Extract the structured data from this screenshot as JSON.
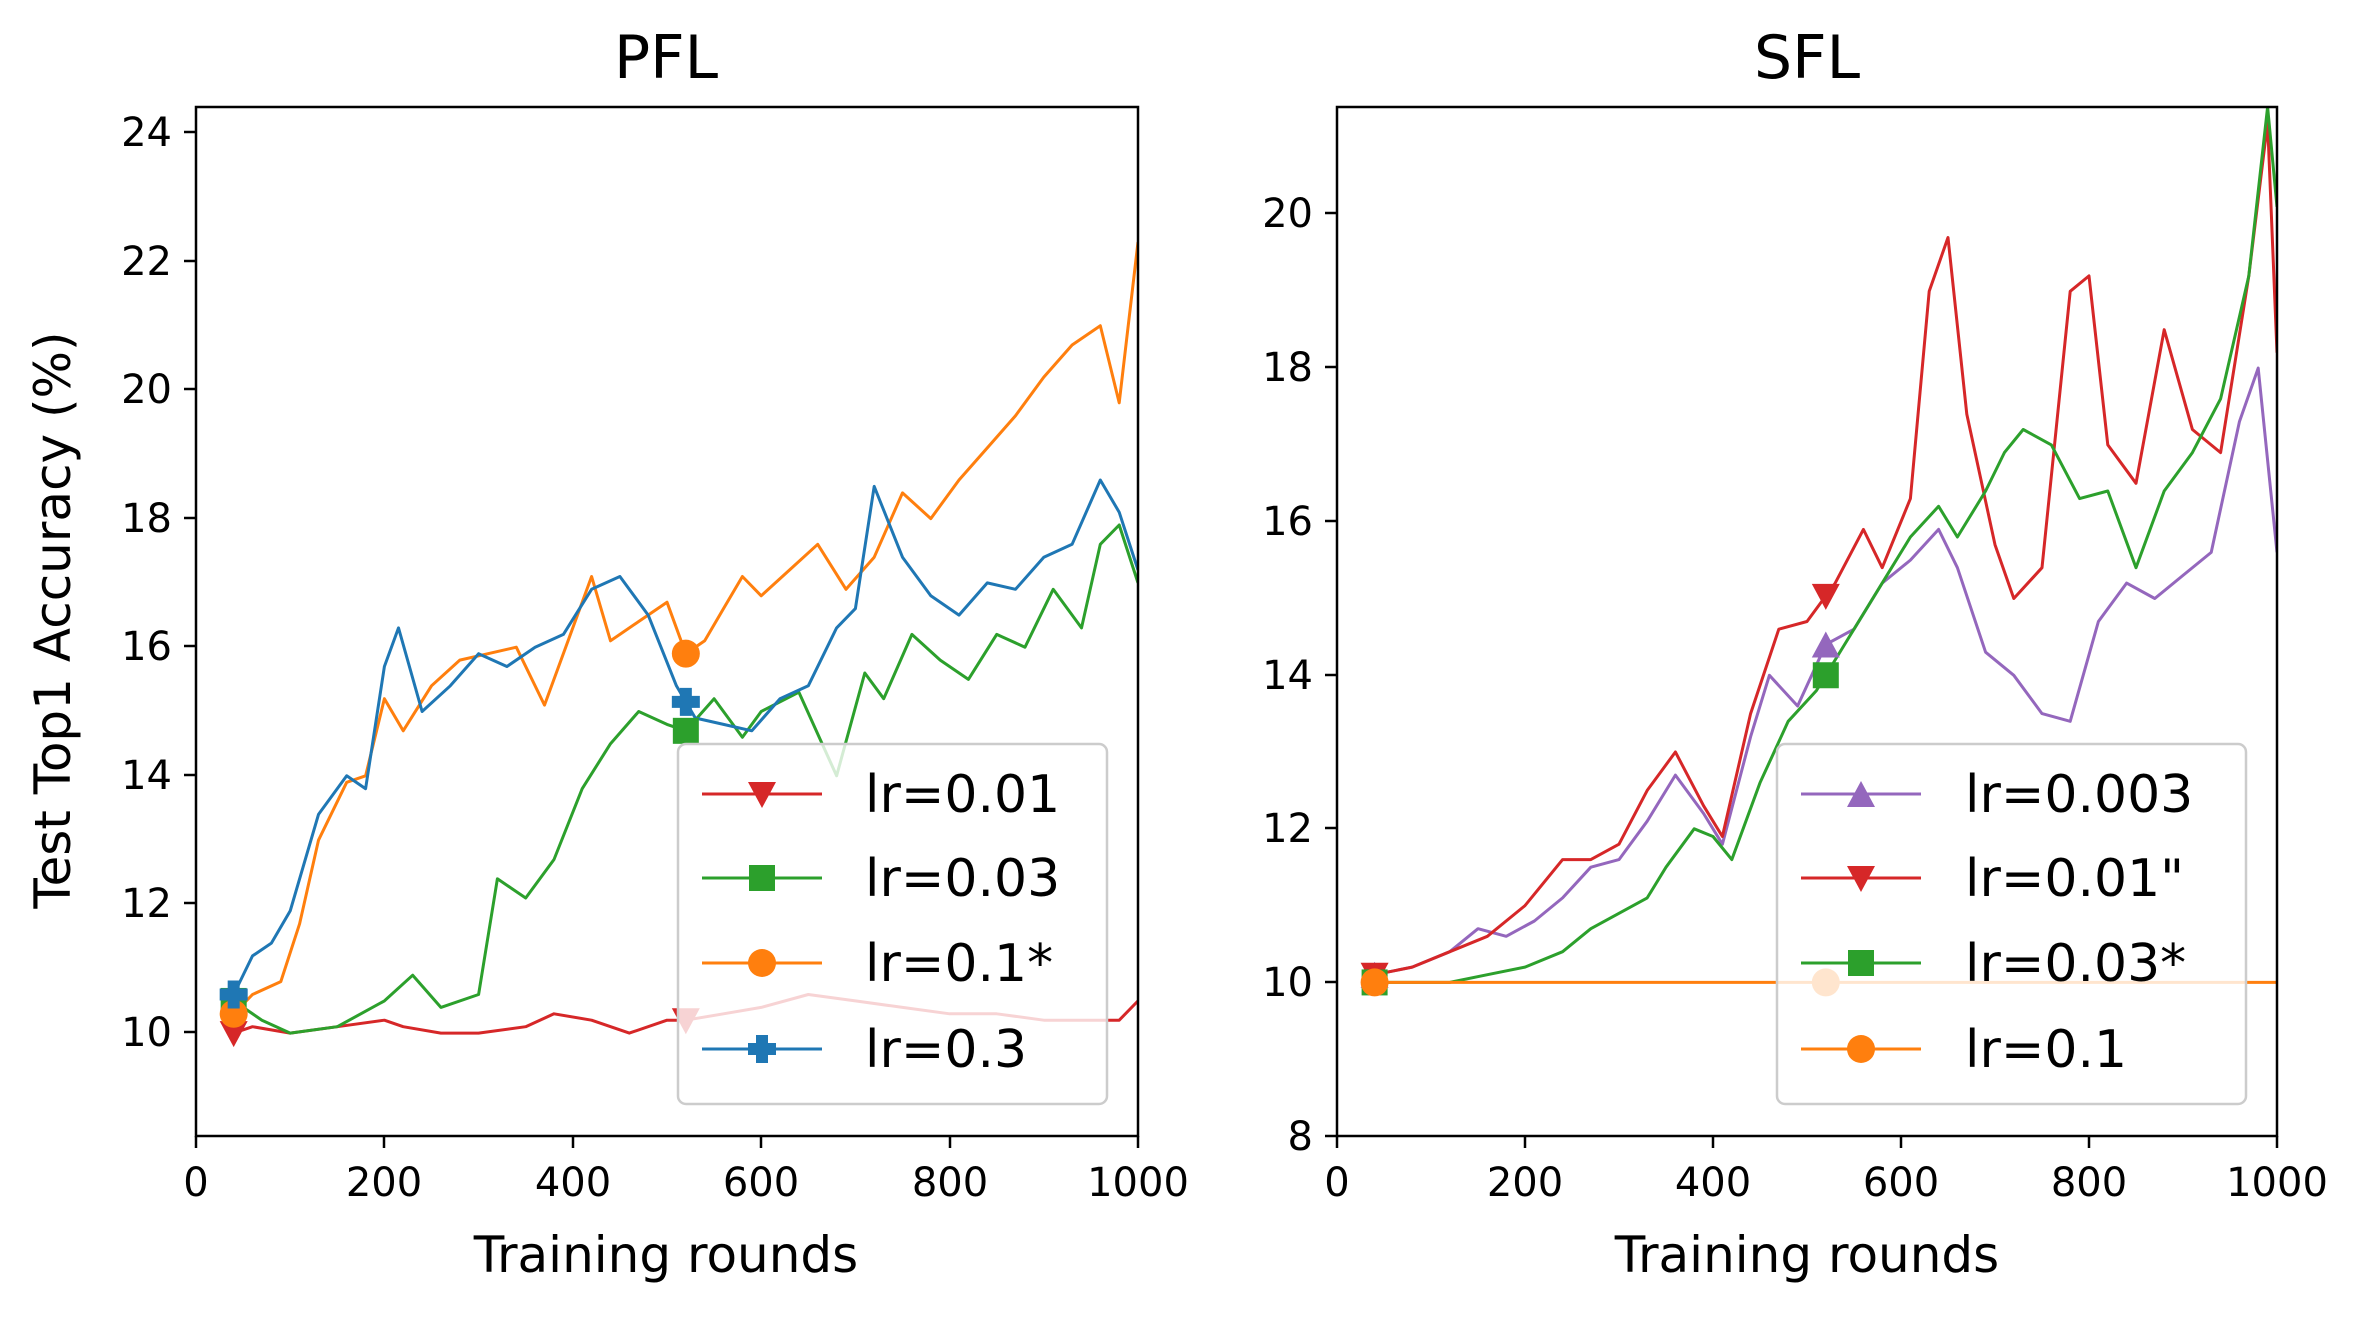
{
  "chart_data": [
    {
      "type": "line",
      "title": "PFL",
      "xlabel": "Training rounds",
      "ylabel": "Test Top1 Accuracy (%)",
      "xlim": [
        0,
        1000
      ],
      "ylim": [
        8.4,
        24.4
      ],
      "xticks": [
        0,
        200,
        400,
        600,
        800,
        1000
      ],
      "yticks": [
        10,
        12,
        14,
        16,
        18,
        20,
        22,
        24
      ],
      "xtick_labels": [
        "0",
        "200",
        "400",
        "600",
        "800",
        "1000"
      ],
      "ytick_labels": [
        "10",
        "12",
        "14",
        "16",
        "18",
        "20",
        "22",
        "24"
      ],
      "grid": false,
      "legend_position": "lower-right",
      "series": [
        {
          "name": "lr=0.01",
          "color": "#d62728",
          "marker": "triangle-down",
          "x": [
            40,
            60,
            100,
            150,
            200,
            220,
            260,
            300,
            350,
            380,
            420,
            460,
            500,
            520,
            560,
            600,
            650,
            700,
            750,
            800,
            850,
            900,
            940,
            980,
            1000
          ],
          "y": [
            10.0,
            10.1,
            10.0,
            10.1,
            10.2,
            10.1,
            10.0,
            10.0,
            10.1,
            10.3,
            10.2,
            10.0,
            10.2,
            10.2,
            10.3,
            10.4,
            10.6,
            10.5,
            10.4,
            10.3,
            10.3,
            10.2,
            10.2,
            10.2,
            10.5
          ]
        },
        {
          "name": "lr=0.03",
          "color": "#2ca02c",
          "marker": "square",
          "x": [
            40,
            70,
            100,
            150,
            200,
            230,
            260,
            300,
            320,
            350,
            380,
            410,
            440,
            470,
            500,
            520,
            550,
            580,
            600,
            640,
            680,
            710,
            730,
            760,
            790,
            820,
            850,
            880,
            910,
            940,
            960,
            980,
            1000
          ],
          "y": [
            10.5,
            10.2,
            10.0,
            10.1,
            10.5,
            10.9,
            10.4,
            10.6,
            12.4,
            12.1,
            12.7,
            13.8,
            14.5,
            15.0,
            14.8,
            14.7,
            15.2,
            14.6,
            15.0,
            15.3,
            14.0,
            15.6,
            15.2,
            16.2,
            15.8,
            15.5,
            16.2,
            16.0,
            16.9,
            16.3,
            17.6,
            17.9,
            17.0
          ]
        },
        {
          "name": "lr=0.1*",
          "color": "#ff7f0e",
          "marker": "circle",
          "x": [
            40,
            60,
            90,
            110,
            130,
            160,
            180,
            200,
            220,
            250,
            280,
            310,
            340,
            370,
            400,
            420,
            440,
            470,
            500,
            520,
            540,
            560,
            580,
            600,
            630,
            660,
            690,
            720,
            750,
            780,
            810,
            840,
            870,
            900,
            930,
            960,
            980,
            1000
          ],
          "y": [
            10.3,
            10.6,
            10.8,
            11.7,
            13.0,
            13.9,
            14.0,
            15.2,
            14.7,
            15.4,
            15.8,
            15.9,
            16.0,
            15.1,
            16.3,
            17.1,
            16.1,
            16.4,
            16.7,
            15.9,
            16.1,
            16.6,
            17.1,
            16.8,
            17.2,
            17.6,
            16.9,
            17.4,
            18.4,
            18.0,
            18.6,
            19.1,
            19.6,
            20.2,
            20.7,
            21.0,
            19.8,
            22.3
          ]
        },
        {
          "name": "lr=0.3",
          "color": "#1f77b4",
          "marker": "plus",
          "x": [
            40,
            60,
            80,
            100,
            130,
            160,
            180,
            200,
            215,
            240,
            270,
            300,
            330,
            360,
            390,
            420,
            450,
            480,
            510,
            530,
            560,
            590,
            620,
            650,
            680,
            700,
            720,
            750,
            780,
            810,
            840,
            870,
            900,
            930,
            960,
            980,
            1000
          ],
          "y": [
            10.6,
            11.2,
            11.4,
            11.9,
            13.4,
            14.0,
            13.8,
            15.7,
            16.3,
            15.0,
            15.4,
            15.9,
            15.7,
            16.0,
            16.2,
            16.9,
            17.1,
            16.5,
            15.4,
            14.9,
            14.8,
            14.7,
            15.2,
            15.4,
            16.3,
            16.6,
            18.5,
            17.4,
            16.8,
            16.5,
            17.0,
            16.9,
            17.4,
            17.6,
            18.6,
            18.1,
            17.2
          ]
        }
      ]
    },
    {
      "type": "line",
      "title": "SFL",
      "xlabel": "Training rounds",
      "ylabel": "",
      "xlim": [
        0,
        1000
      ],
      "ylim": [
        8,
        21.4
      ],
      "xticks": [
        0,
        200,
        400,
        600,
        800,
        1000
      ],
      "yticks": [
        8,
        10,
        12,
        14,
        16,
        18,
        20
      ],
      "xtick_labels": [
        "0",
        "200",
        "400",
        "600",
        "800",
        "1000"
      ],
      "ytick_labels": [
        "8",
        "10",
        "12",
        "14",
        "16",
        "18",
        "20"
      ],
      "grid": false,
      "legend_position": "lower-right",
      "series": [
        {
          "name": "lr=0.003",
          "color": "#9467bd",
          "marker": "triangle-up",
          "x": [
            40,
            80,
            120,
            150,
            180,
            210,
            240,
            270,
            300,
            330,
            360,
            390,
            410,
            440,
            460,
            490,
            520,
            550,
            580,
            610,
            640,
            660,
            690,
            720,
            750,
            780,
            810,
            840,
            870,
            900,
            930,
            960,
            980,
            1000
          ],
          "y": [
            10.1,
            10.2,
            10.4,
            10.7,
            10.6,
            10.8,
            11.1,
            11.5,
            11.6,
            12.1,
            12.7,
            12.2,
            11.8,
            13.2,
            14.0,
            13.6,
            14.4,
            14.6,
            15.2,
            15.5,
            15.9,
            15.4,
            14.3,
            14.0,
            13.5,
            13.4,
            14.7,
            15.2,
            15.0,
            15.3,
            15.6,
            17.3,
            18.0,
            15.6
          ]
        },
        {
          "name": "lr=0.01\"",
          "color": "#d62728",
          "marker": "triangle-down",
          "x": [
            40,
            80,
            120,
            160,
            200,
            240,
            270,
            300,
            330,
            360,
            390,
            410,
            440,
            470,
            500,
            530,
            560,
            580,
            610,
            630,
            650,
            670,
            700,
            720,
            750,
            780,
            800,
            820,
            850,
            880,
            910,
            940,
            970,
            990,
            1000
          ],
          "y": [
            10.1,
            10.2,
            10.4,
            10.6,
            11.0,
            11.6,
            11.6,
            11.8,
            12.5,
            13.0,
            12.3,
            11.9,
            13.5,
            14.6,
            14.7,
            15.2,
            15.9,
            15.4,
            16.3,
            19.0,
            19.7,
            17.4,
            15.7,
            15.0,
            15.4,
            19.0,
            19.2,
            17.0,
            16.5,
            18.5,
            17.2,
            16.9,
            19.2,
            21.2,
            18.2
          ]
        },
        {
          "name": "lr=0.03*",
          "color": "#2ca02c",
          "marker": "square",
          "x": [
            40,
            80,
            120,
            160,
            200,
            240,
            270,
            300,
            330,
            350,
            380,
            400,
            420,
            450,
            480,
            510,
            540,
            560,
            590,
            610,
            640,
            660,
            690,
            710,
            730,
            760,
            790,
            820,
            850,
            880,
            910,
            940,
            970,
            990,
            1000
          ],
          "y": [
            10.0,
            10.0,
            10.0,
            10.1,
            10.2,
            10.4,
            10.7,
            10.9,
            11.1,
            11.5,
            12.0,
            11.9,
            11.6,
            12.6,
            13.4,
            13.8,
            14.4,
            14.8,
            15.4,
            15.8,
            16.2,
            15.8,
            16.4,
            16.9,
            17.2,
            17.0,
            16.3,
            16.4,
            15.4,
            16.4,
            16.9,
            17.6,
            19.2,
            21.4,
            20.1
          ]
        },
        {
          "name": "lr=0.1",
          "color": "#ff7f0e",
          "marker": "circle",
          "x": [
            40,
            1000
          ],
          "y": [
            10.0,
            10.0
          ]
        }
      ]
    }
  ]
}
